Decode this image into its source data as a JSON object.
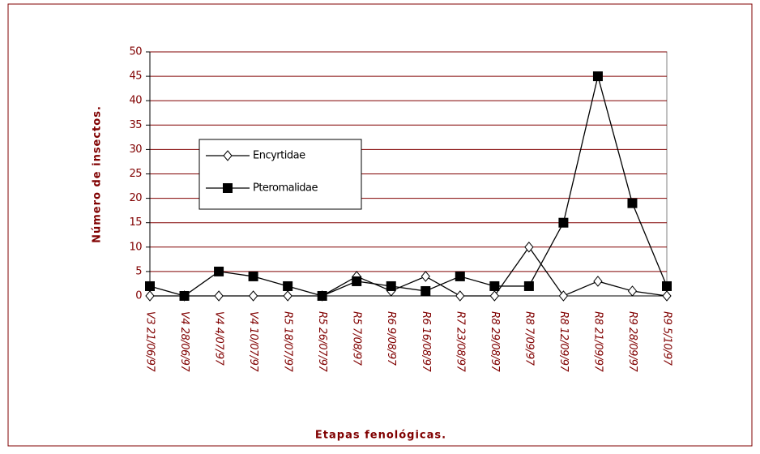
{
  "chart_data": {
    "type": "line",
    "x_label": "Etapas fenológicas.",
    "y_label": "Número de insectos.",
    "categories": [
      "V3 21/06/97",
      "V4 28/06/97",
      "V4 4/07/97",
      "V4 10/07/97",
      "R5 18/07/97",
      "R5 26/07/97",
      "R5 7/08/97",
      "R6 9/08/97",
      "R6 16/08/97",
      "R7 23/08/97",
      "R8 29/08/97",
      "R8 7/09/97",
      "R8 12/09/97",
      "R8 21/09/97",
      "R9 28/09/97",
      "R9 5/10/97"
    ],
    "series": [
      {
        "name": "Encyrtidae",
        "color": "#000000",
        "marker": "diamond",
        "values": [
          0,
          0,
          0,
          0,
          0,
          0,
          4,
          1,
          4,
          0,
          0,
          10,
          0,
          3,
          1,
          0
        ]
      },
      {
        "name": "Pteromalidae",
        "color": "#000000",
        "marker": "square",
        "values": [
          2,
          0,
          5,
          4,
          2,
          0,
          3,
          2,
          1,
          4,
          2,
          2,
          15,
          45,
          19,
          2
        ]
      }
    ],
    "ylim": [
      0,
      50
    ],
    "yticks": [
      0,
      5,
      10,
      15,
      20,
      25,
      30,
      35,
      40,
      45,
      50
    ],
    "grid": true
  }
}
